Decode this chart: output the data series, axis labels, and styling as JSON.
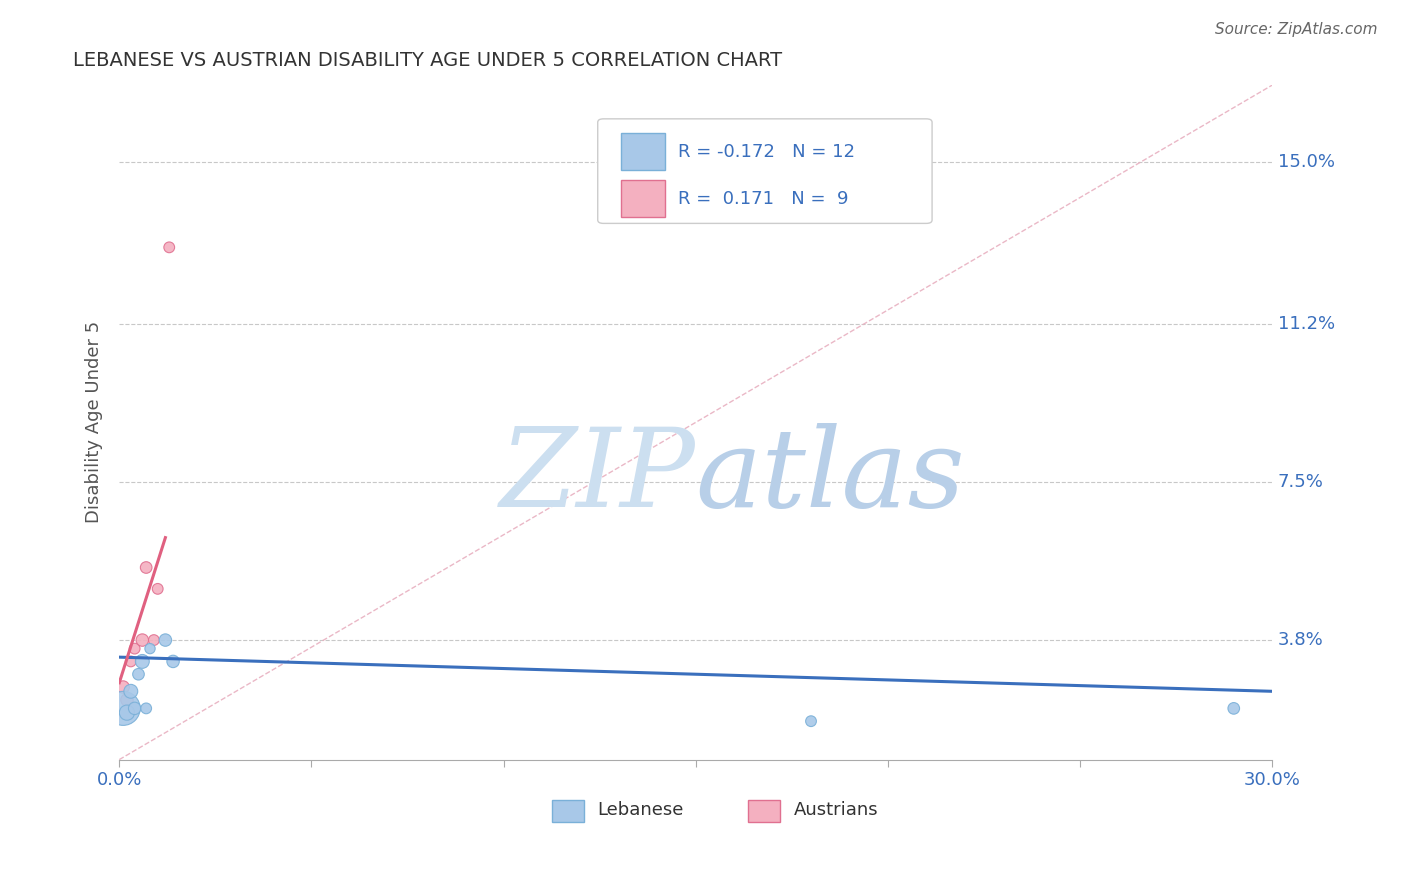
{
  "title": "LEBANESE VS AUSTRIAN DISABILITY AGE UNDER 5 CORRELATION CHART",
  "source": "Source: ZipAtlas.com",
  "ylabel": "Disability Age Under 5",
  "xlim": [
    0.0,
    0.3
  ],
  "ylim": [
    0.01,
    0.168
  ],
  "yticks": [
    0.038,
    0.075,
    0.112,
    0.15
  ],
  "ytick_labels": [
    "3.8%",
    "7.5%",
    "11.2%",
    "15.0%"
  ],
  "xticks": [
    0.0,
    0.05,
    0.1,
    0.15,
    0.2,
    0.25,
    0.3
  ],
  "xtick_labels": [
    "0.0%",
    "",
    "",
    "",
    "",
    "",
    "30.0%"
  ],
  "lebanese_x": [
    0.001,
    0.002,
    0.003,
    0.004,
    0.005,
    0.006,
    0.007,
    0.008,
    0.012,
    0.014,
    0.18,
    0.29
  ],
  "lebanese_y": [
    0.022,
    0.021,
    0.026,
    0.022,
    0.03,
    0.033,
    0.022,
    0.036,
    0.038,
    0.033,
    0.019,
    0.022
  ],
  "lebanese_sizes": [
    600,
    120,
    100,
    80,
    70,
    100,
    60,
    55,
    80,
    80,
    60,
    70
  ],
  "austrian_x": [
    0.001,
    0.002,
    0.003,
    0.004,
    0.006,
    0.007,
    0.009,
    0.01,
    0.013
  ],
  "austrian_y": [
    0.027,
    0.024,
    0.033,
    0.036,
    0.038,
    0.055,
    0.038,
    0.05,
    0.13
  ],
  "austrian_sizes": [
    80,
    80,
    60,
    60,
    80,
    70,
    60,
    60,
    60
  ],
  "lebanese_color": "#a8c8e8",
  "lebanese_edge_color": "#7ab0d8",
  "austrian_color": "#f4b0c0",
  "austrian_edge_color": "#e07090",
  "lebanese_r": -0.172,
  "lebanese_n": 12,
  "austrian_r": 0.171,
  "austrian_n": 9,
  "blue_line_color": "#3a6fbd",
  "pink_line_color": "#e06080",
  "ref_line_color": "#e8b0c0",
  "watermark_zip": "ZIP",
  "watermark_atlas": "atlas",
  "watermark_color_zip": "#ccdff0",
  "watermark_color_atlas": "#b8cfe8",
  "background_color": "#ffffff",
  "grid_color": "#c8c8c8",
  "legend_box_color": "#f8f8f8",
  "legend_border_color": "#cccccc",
  "legend_text_color": "#3a6fbd",
  "title_color": "#333333",
  "source_color": "#666666",
  "ylabel_color": "#555555",
  "axis_label_color": "#3a6fbd",
  "blue_line_start_y": 0.034,
  "blue_line_end_y": 0.026,
  "pink_line_x0": 0.0,
  "pink_line_x1": 0.012,
  "pink_line_y0": 0.028,
  "pink_line_y1": 0.062
}
